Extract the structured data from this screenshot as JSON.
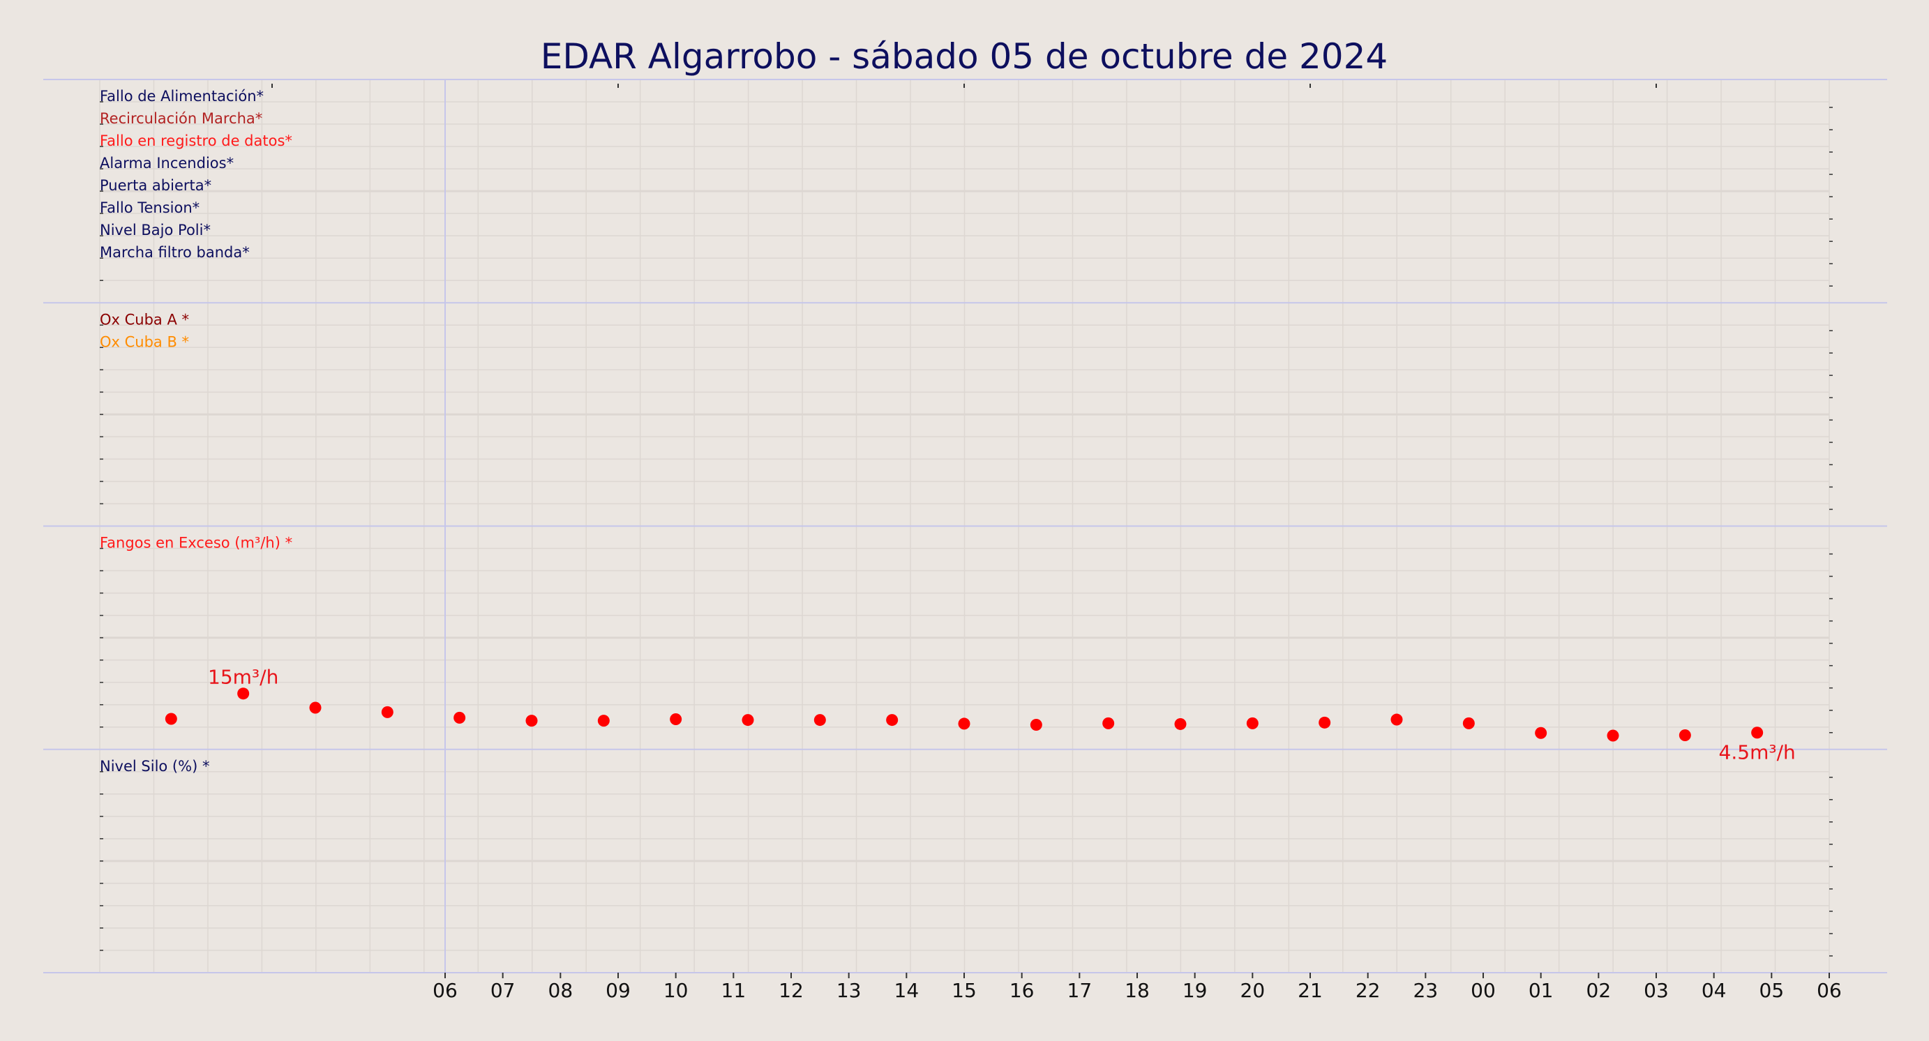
{
  "title": "EDAR Algarrobo   -   sábado 05 de octubre de 2024",
  "colors": {
    "background": "#ebe6e1",
    "title": "#0d0f5e",
    "grid": "#ddd7d2",
    "panel_border": "#c6c6ea",
    "point": "#ff0000",
    "annotation": "#e8141a"
  },
  "panels": [
    {
      "legend": [
        {
          "label": "Fallo de Alimentación*",
          "color": "#0d0f5e"
        },
        {
          "label": "Recirculación Marcha*",
          "color": "#b22222"
        },
        {
          "label": "Fallo en registro de datos*",
          "color": "#ff1a1a"
        },
        {
          "label": "Alarma Incendios*",
          "color": "#0d0f5e"
        },
        {
          "label": "Puerta abierta*",
          "color": "#0d0f5e"
        },
        {
          "label": "Fallo Tension*",
          "color": "#0d0f5e"
        },
        {
          "label": "Nivel Bajo Poli*",
          "color": "#0d0f5e"
        },
        {
          "label": "Marcha filtro banda*",
          "color": "#0d0f5e"
        }
      ]
    },
    {
      "legend": [
        {
          "label": "Ox Cuba A *",
          "color": "#8b0000"
        },
        {
          "label": "Ox Cuba B *",
          "color": "#ff8c00"
        }
      ]
    },
    {
      "legend": [
        {
          "label": "Fangos en Exceso (m³/h) *",
          "color": "#ff1a1a"
        }
      ]
    },
    {
      "legend": [
        {
          "label": "Nivel Silo (%) *",
          "color": "#0d0f5e"
        }
      ]
    }
  ],
  "chart_data": {
    "type": "scatter",
    "title": "EDAR Algarrobo   -   sábado 05 de octubre de 2024",
    "x_ticks": [
      "06",
      "07",
      "08",
      "09",
      "10",
      "11",
      "12",
      "13",
      "14",
      "15",
      "16",
      "17",
      "18",
      "19",
      "20",
      "21",
      "22",
      "23",
      "00",
      "01",
      "02",
      "03",
      "04",
      "05",
      "06"
    ],
    "x_tick_hours": [
      0,
      1,
      2,
      3,
      4,
      5,
      6,
      7,
      8,
      9,
      10,
      11,
      12,
      13,
      14,
      15,
      16,
      17,
      18,
      19,
      20,
      21,
      22,
      23,
      24
    ],
    "x_range_hours": [
      -6,
      24
    ],
    "series": [
      {
        "name": "Fangos en Exceso (m³/h) *",
        "color": "#ff0000",
        "x_hours": [
          -4.75,
          -3.5,
          -2.25,
          -1,
          0.25,
          1.5,
          2.75,
          4,
          5.25,
          6.5,
          7.75,
          9,
          10.25,
          11.5,
          12.75,
          14,
          15.25,
          16.5,
          17.75,
          19,
          20.25,
          21.5,
          22.75
        ],
        "values": [
          8.2,
          15,
          11.2,
          10,
          8.5,
          7.7,
          7.7,
          8.1,
          7.9,
          7.9,
          7.9,
          6.9,
          6.6,
          7.0,
          6.8,
          7.0,
          7.2,
          8.0,
          7.0,
          4.4,
          3.7,
          3.8,
          4.5
        ]
      }
    ],
    "y_range": [
      0,
      60
    ],
    "annotations": [
      {
        "text": "15m³/h",
        "x_hours": -3.5,
        "value": 15,
        "position": "above"
      },
      {
        "text": "4.5m³/h",
        "x_hours": 22.75,
        "value": 4.5,
        "position": "below"
      }
    ],
    "grid": true
  }
}
